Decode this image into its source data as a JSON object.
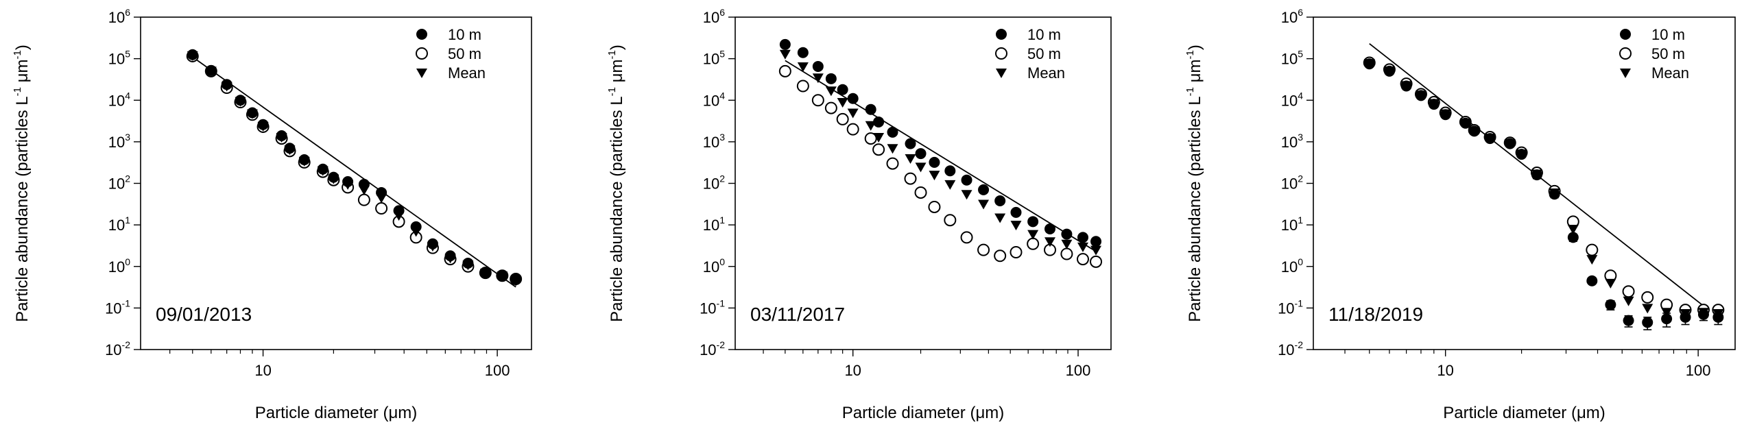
{
  "figure": {
    "xlabel_prefix": "Particle diameter (",
    "xlabel_unit": "μm",
    "xlabel_suffix": ")",
    "ylabel_main": "Particle abundance (particles L",
    "ylabel_mid": " μm",
    "ylabel_close": ")",
    "ylabel_exp": "-1"
  },
  "chart_data": [
    {
      "type": "scatter",
      "title": "",
      "annotation": "09/01/2013",
      "xscale": "log",
      "yscale": "log",
      "xlim": [
        3,
        140
      ],
      "ylim": [
        0.01,
        1000000
      ],
      "xticks": [
        {
          "v": 10,
          "label": "10"
        },
        {
          "v": 100,
          "label": "100"
        }
      ],
      "yticks": [
        {
          "v": 0.01,
          "base": "10",
          "exp": "-2"
        },
        {
          "v": 0.1,
          "base": "10",
          "exp": "-1"
        },
        {
          "v": 1,
          "base": "10",
          "exp": "0"
        },
        {
          "v": 10,
          "base": "10",
          "exp": "1"
        },
        {
          "v": 100,
          "base": "10",
          "exp": "2"
        },
        {
          "v": 1000,
          "base": "10",
          "exp": "3"
        },
        {
          "v": 10000,
          "base": "10",
          "exp": "4"
        },
        {
          "v": 100000,
          "base": "10",
          "exp": "5"
        },
        {
          "v": 1000000,
          "base": "10",
          "exp": "6"
        }
      ],
      "legend_position": "top-right",
      "series": [
        {
          "name": "10 m",
          "marker": "filled-circle",
          "x": [
            5,
            6,
            7,
            8,
            9,
            10,
            12,
            13,
            15,
            18,
            20,
            23,
            27,
            32,
            38,
            45,
            53,
            63,
            75,
            89,
            105,
            120
          ],
          "y": [
            125000,
            52000,
            24000,
            10000,
            5000,
            2600,
            1400,
            700,
            370,
            220,
            140,
            110,
            95,
            60,
            22,
            9,
            3.5,
            1.8,
            1.2,
            0.7,
            0.6,
            0.5
          ]
        },
        {
          "name": "50 m",
          "marker": "open-circle",
          "x": [
            5,
            6,
            7,
            8,
            9,
            10,
            12,
            13,
            15,
            18,
            20,
            23,
            27,
            32,
            38,
            45,
            53,
            63,
            75,
            89,
            105,
            120
          ],
          "y": [
            115000,
            50000,
            20000,
            9000,
            4500,
            2300,
            1200,
            600,
            320,
            190,
            120,
            80,
            40,
            25,
            12,
            5,
            2.8,
            1.5,
            1.0,
            0.7,
            0.6,
            0.5
          ]
        },
        {
          "name": "Mean",
          "marker": "filled-triangle-down",
          "x": [
            5,
            6,
            7,
            8,
            9,
            10,
            12,
            13,
            15,
            18,
            20,
            23,
            27,
            32,
            38,
            45,
            53,
            63,
            75,
            89,
            105,
            120
          ],
          "y": [
            120000,
            51000,
            22000,
            9500,
            4800,
            2400,
            1300,
            650,
            345,
            205,
            130,
            95,
            70,
            45,
            17,
            7,
            3.1,
            1.6,
            1.1,
            0.7,
            0.6,
            0.45
          ]
        }
      ],
      "fit_line": {
        "x": [
          5,
          120
        ],
        "y": [
          110000,
          0.32
        ]
      }
    },
    {
      "type": "scatter",
      "title": "",
      "annotation": "03/11/2017",
      "xscale": "log",
      "yscale": "log",
      "xlim": [
        3,
        140
      ],
      "ylim": [
        0.01,
        1000000
      ],
      "xticks": [
        {
          "v": 10,
          "label": "10"
        },
        {
          "v": 100,
          "label": "100"
        }
      ],
      "yticks": [
        {
          "v": 0.01,
          "base": "10",
          "exp": "-2"
        },
        {
          "v": 0.1,
          "base": "10",
          "exp": "-1"
        },
        {
          "v": 1,
          "base": "10",
          "exp": "0"
        },
        {
          "v": 10,
          "base": "10",
          "exp": "1"
        },
        {
          "v": 100,
          "base": "10",
          "exp": "2"
        },
        {
          "v": 1000,
          "base": "10",
          "exp": "3"
        },
        {
          "v": 10000,
          "base": "10",
          "exp": "4"
        },
        {
          "v": 100000,
          "base": "10",
          "exp": "5"
        },
        {
          "v": 1000000,
          "base": "10",
          "exp": "6"
        }
      ],
      "legend_position": "top-right",
      "series": [
        {
          "name": "10 m",
          "marker": "filled-circle",
          "x": [
            5,
            6,
            7,
            8,
            9,
            10,
            12,
            13,
            15,
            18,
            20,
            23,
            27,
            32,
            38,
            45,
            53,
            63,
            75,
            89,
            105,
            120
          ],
          "y": [
            220000,
            140000,
            65000,
            33000,
            18000,
            11000,
            6000,
            3000,
            1700,
            900,
            520,
            320,
            200,
            120,
            70,
            38,
            20,
            12,
            8,
            6,
            5,
            4
          ]
        },
        {
          "name": "50 m",
          "marker": "open-circle",
          "x": [
            5,
            6,
            7,
            8,
            9,
            10,
            12,
            13,
            15,
            18,
            20,
            23,
            27,
            32,
            38,
            45,
            53,
            63,
            75,
            89,
            105,
            120
          ],
          "y": [
            50000,
            22000,
            10000,
            6500,
            3500,
            2000,
            1200,
            650,
            300,
            130,
            60,
            27,
            13,
            5,
            2.5,
            1.8,
            2.2,
            3.5,
            2.5,
            2.0,
            1.5,
            1.3
          ]
        },
        {
          "name": "Mean",
          "marker": "filled-triangle-down",
          "x": [
            5,
            6,
            7,
            8,
            9,
            10,
            12,
            13,
            15,
            18,
            20,
            23,
            27,
            32,
            38,
            45,
            53,
            63,
            75,
            89,
            105,
            120
          ],
          "y": [
            130000,
            65000,
            35000,
            17000,
            9000,
            5000,
            2500,
            1300,
            700,
            400,
            250,
            160,
            95,
            55,
            32,
            15,
            10,
            6,
            4,
            3.5,
            3,
            2.5
          ]
        }
      ],
      "fit_line": {
        "x": [
          5,
          120
        ],
        "y": [
          90000,
          2.3
        ]
      }
    },
    {
      "type": "scatter",
      "title": "",
      "annotation": "11/18/2019",
      "xscale": "log",
      "yscale": "log",
      "xlim": [
        3,
        140
      ],
      "ylim": [
        0.01,
        1000000
      ],
      "xticks": [
        {
          "v": 10,
          "label": "10"
        },
        {
          "v": 100,
          "label": "100"
        }
      ],
      "yticks": [
        {
          "v": 0.01,
          "base": "10",
          "exp": "-2"
        },
        {
          "v": 0.1,
          "base": "10",
          "exp": "-1"
        },
        {
          "v": 1,
          "base": "10",
          "exp": "0"
        },
        {
          "v": 10,
          "base": "10",
          "exp": "1"
        },
        {
          "v": 100,
          "base": "10",
          "exp": "2"
        },
        {
          "v": 1000,
          "base": "10",
          "exp": "3"
        },
        {
          "v": 10000,
          "base": "10",
          "exp": "4"
        },
        {
          "v": 100000,
          "base": "10",
          "exp": "5"
        },
        {
          "v": 1000000,
          "base": "10",
          "exp": "6"
        }
      ],
      "legend_position": "top-right",
      "series": [
        {
          "name": "10 m",
          "marker": "filled-circle",
          "x": [
            5,
            6,
            7,
            8,
            9,
            10,
            12,
            13,
            15,
            18,
            20,
            23,
            27,
            32,
            38,
            45,
            53,
            63,
            75,
            89,
            105,
            120
          ],
          "y": [
            75000,
            50000,
            22000,
            13000,
            8000,
            4500,
            2800,
            1800,
            1200,
            900,
            500,
            160,
            55,
            5,
            0.45,
            0.12,
            0.05,
            0.045,
            0.055,
            0.06,
            0.07,
            0.06
          ],
          "err": [
            8000,
            6000,
            3000,
            2000,
            1000,
            500,
            300,
            200,
            150,
            120,
            80,
            30,
            10,
            1,
            0.05,
            0.03,
            0.015,
            0.015,
            0.02,
            0.02,
            0.02,
            0.02
          ]
        },
        {
          "name": "50 m",
          "marker": "open-circle",
          "x": [
            5,
            6,
            7,
            8,
            9,
            10,
            12,
            13,
            15,
            18,
            20,
            23,
            27,
            32,
            38,
            45,
            53,
            63,
            75,
            89,
            105,
            120
          ],
          "y": [
            80000,
            55000,
            25000,
            14000,
            9000,
            5000,
            3000,
            1900,
            1300,
            950,
            550,
            180,
            65,
            12,
            2.5,
            0.6,
            0.25,
            0.18,
            0.12,
            0.09,
            0.09,
            0.09
          ]
        },
        {
          "name": "Mean",
          "marker": "filled-triangle-down",
          "x": [
            5,
            6,
            7,
            8,
            9,
            10,
            12,
            13,
            15,
            18,
            20,
            23,
            27,
            32,
            38,
            45,
            53,
            63,
            75,
            89,
            105,
            120
          ],
          "y": [
            78000,
            52000,
            23000,
            13500,
            8500,
            4800,
            2900,
            1850,
            1250,
            920,
            520,
            170,
            60,
            8,
            1.5,
            0.4,
            0.15,
            0.1,
            0.08,
            0.075,
            0.08,
            0.075
          ]
        }
      ],
      "fit_line": {
        "x": [
          5,
          110
        ],
        "y": [
          230000,
          0.09
        ]
      }
    }
  ]
}
